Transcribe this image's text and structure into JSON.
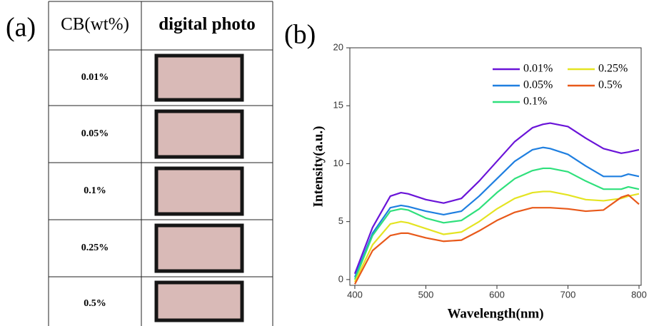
{
  "panel_labels": [
    "(a)",
    "(b)"
  ],
  "table": {
    "header": [
      "CB(wt%)",
      "digital photo"
    ],
    "rows": [
      "0.01%",
      "0.05%",
      "0.1%",
      "0.25%",
      "0.5%"
    ]
  },
  "chart_data": {
    "type": "line",
    "x_label": "Wavelength(nm)",
    "y_label": "Intensity(a.u.)",
    "x": [
      400,
      425,
      450,
      465,
      475,
      500,
      525,
      550,
      575,
      600,
      625,
      650,
      665,
      675,
      700,
      725,
      750,
      775,
      785,
      800
    ],
    "series": [
      {
        "name": "0.01%",
        "color": "#6a14d8",
        "values": [
          0.5,
          4.5,
          7.2,
          7.5,
          7.4,
          6.9,
          6.6,
          7.0,
          8.5,
          10.2,
          11.9,
          13.1,
          13.4,
          13.5,
          13.2,
          12.2,
          11.3,
          10.9,
          11.0,
          11.2
        ]
      },
      {
        "name": "0.05%",
        "color": "#1f7fe0",
        "values": [
          0.2,
          4.0,
          6.2,
          6.4,
          6.3,
          5.9,
          5.6,
          5.9,
          7.2,
          8.7,
          10.2,
          11.2,
          11.4,
          11.3,
          10.8,
          9.8,
          8.9,
          8.9,
          9.1,
          8.9
        ]
      },
      {
        "name": "0.1%",
        "color": "#2fe07c",
        "values": [
          0,
          3.8,
          5.9,
          6.1,
          6.0,
          5.3,
          4.9,
          5.1,
          6.1,
          7.5,
          8.7,
          9.4,
          9.6,
          9.6,
          9.3,
          8.5,
          7.8,
          7.8,
          8.0,
          7.8
        ]
      },
      {
        "name": "0.25%",
        "color": "#e4e422",
        "values": [
          -0.2,
          3.0,
          4.8,
          5.0,
          4.9,
          4.4,
          3.9,
          4.1,
          5.0,
          6.1,
          7.0,
          7.5,
          7.6,
          7.6,
          7.3,
          6.9,
          6.8,
          7.0,
          7.2,
          7.4
        ]
      },
      {
        "name": "0.5%",
        "color": "#e8591a",
        "values": [
          -0.4,
          2.5,
          3.8,
          4.0,
          4.0,
          3.6,
          3.3,
          3.4,
          4.2,
          5.1,
          5.8,
          6.2,
          6.2,
          6.2,
          6.1,
          5.9,
          6.0,
          7.1,
          7.3,
          6.5
        ]
      }
    ],
    "xlim": [
      393,
      803
    ],
    "ylim": [
      -0.5,
      20
    ],
    "xticks": [
      400,
      500,
      600,
      700,
      800
    ],
    "yticks": [
      0,
      5,
      10,
      15,
      20
    ],
    "legend": "top-right",
    "grid": false
  }
}
